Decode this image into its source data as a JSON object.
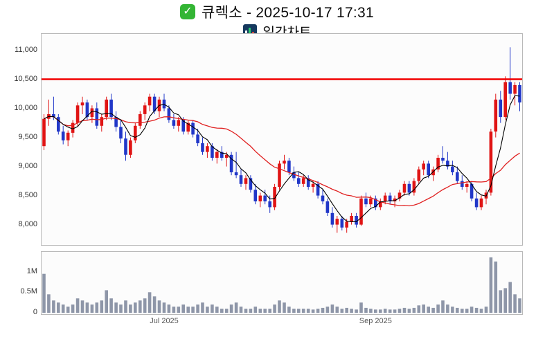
{
  "header": {
    "title": "큐렉소 - 2025-10-17 17:31",
    "subtitle": "일간차트"
  },
  "icons": {
    "check": "✓",
    "chart": "bar-chart-icon"
  },
  "colors": {
    "up": "#e01414",
    "down": "#2137c8",
    "ma_short": "#000000",
    "ma_long": "#e02020",
    "resistance": "#f20000",
    "volume_bar": "#8e96a8",
    "panel_border": "#b9b9b9",
    "panel_bg": "#fcfcfc"
  },
  "chart_data": {
    "type": "candlestick",
    "title": "큐렉소 일간차트",
    "price_range": [
      7650,
      11280
    ],
    "y_ticks": [
      11000,
      10500,
      10000,
      9500,
      9000,
      8500,
      8000
    ],
    "y_tick_labels": [
      "11,000",
      "10,500",
      "10,000",
      "9,500",
      "9,000",
      "8,500",
      "8,000"
    ],
    "resistance_line": 10500,
    "volume_max": 1450000,
    "volume_ticks": [
      {
        "value": 1000000,
        "label": "1M"
      },
      {
        "value": 500000,
        "label": "0.5M"
      },
      {
        "value": 0,
        "label": "0"
      }
    ],
    "x_ticks": [
      {
        "index": 25,
        "label": "Jul 2025"
      },
      {
        "index": 69,
        "label": "Sep 2025"
      }
    ],
    "ma_short_window": 5,
    "ma_long_window": 20,
    "candles": [
      [
        9350,
        9900,
        9280,
        9820
      ],
      [
        9820,
        10150,
        9700,
        9900
      ],
      [
        9900,
        10200,
        9800,
        9850
      ],
      [
        9850,
        9900,
        9550,
        9600
      ],
      [
        9600,
        9700,
        9380,
        9450
      ],
      [
        9450,
        9620,
        9350,
        9580
      ],
      [
        9580,
        9800,
        9500,
        9750
      ],
      [
        9750,
        10100,
        9700,
        10050
      ],
      [
        10050,
        10200,
        9900,
        10100
      ],
      [
        10100,
        10150,
        9800,
        9850
      ],
      [
        9850,
        10050,
        9750,
        10000
      ],
      [
        10000,
        10100,
        9650,
        9700
      ],
      [
        9700,
        9900,
        9600,
        9850
      ],
      [
        9850,
        10200,
        9800,
        10150
      ],
      [
        10150,
        10250,
        9800,
        9850
      ],
      [
        9850,
        9950,
        9600,
        9680
      ],
      [
        9680,
        9800,
        9400,
        9480
      ],
      [
        9480,
        9600,
        9100,
        9200
      ],
      [
        9200,
        9500,
        9150,
        9450
      ],
      [
        9450,
        9750,
        9400,
        9700
      ],
      [
        9700,
        9950,
        9650,
        9900
      ],
      [
        9900,
        10100,
        9800,
        10050
      ],
      [
        10050,
        10250,
        9950,
        10200
      ],
      [
        10200,
        10250,
        9900,
        9950
      ],
      [
        9950,
        10200,
        9850,
        10150
      ],
      [
        10150,
        10250,
        9950,
        10000
      ],
      [
        10000,
        10050,
        9750,
        9800
      ],
      [
        9800,
        9900,
        9650,
        9700
      ],
      [
        9700,
        9850,
        9600,
        9800
      ],
      [
        9800,
        9850,
        9550,
        9600
      ],
      [
        9600,
        9800,
        9550,
        9750
      ],
      [
        9750,
        9800,
        9500,
        9550
      ],
      [
        9550,
        9650,
        9350,
        9400
      ],
      [
        9400,
        9500,
        9200,
        9250
      ],
      [
        9250,
        9400,
        9150,
        9350
      ],
      [
        9350,
        9400,
        9100,
        9150
      ],
      [
        9150,
        9300,
        9050,
        9250
      ],
      [
        9250,
        9350,
        9100,
        9150
      ],
      [
        9150,
        9250,
        9000,
        9200
      ],
      [
        9200,
        9250,
        8850,
        8900
      ],
      [
        8900,
        9250,
        8800,
        8850
      ],
      [
        8850,
        8950,
        8650,
        8700
      ],
      [
        8700,
        8850,
        8600,
        8800
      ],
      [
        8800,
        8850,
        8550,
        8600
      ],
      [
        8600,
        8700,
        8350,
        8400
      ],
      [
        8400,
        8550,
        8300,
        8500
      ],
      [
        8500,
        8600,
        8350,
        8400
      ],
      [
        8400,
        8500,
        8200,
        8300
      ],
      [
        8300,
        8700,
        8250,
        8650
      ],
      [
        8650,
        9100,
        8600,
        9050
      ],
      [
        9050,
        9200,
        8950,
        9100
      ],
      [
        9100,
        9150,
        8850,
        8900
      ],
      [
        8900,
        9000,
        8750,
        8800
      ],
      [
        8800,
        8900,
        8650,
        8700
      ],
      [
        8700,
        8850,
        8650,
        8800
      ],
      [
        8800,
        8850,
        8600,
        8650
      ],
      [
        8650,
        8750,
        8550,
        8700
      ],
      [
        8700,
        8750,
        8450,
        8500
      ],
      [
        8500,
        8600,
        8350,
        8400
      ],
      [
        8400,
        8450,
        8150,
        8200
      ],
      [
        8200,
        8300,
        7950,
        8000
      ],
      [
        8000,
        8150,
        7860,
        8100
      ],
      [
        8100,
        8150,
        7900,
        7950
      ],
      [
        7950,
        8100,
        7860,
        8050
      ],
      [
        8050,
        8200,
        8000,
        8150
      ],
      [
        8150,
        8200,
        7950,
        8000
      ],
      [
        8000,
        8500,
        7980,
        8450
      ],
      [
        8450,
        8550,
        8300,
        8350
      ],
      [
        8350,
        8500,
        8300,
        8450
      ],
      [
        8450,
        8500,
        8250,
        8300
      ],
      [
        8300,
        8450,
        8250,
        8400
      ],
      [
        8400,
        8550,
        8350,
        8500
      ],
      [
        8500,
        8550,
        8350,
        8400
      ],
      [
        8400,
        8500,
        8300,
        8450
      ],
      [
        8450,
        8600,
        8400,
        8550
      ],
      [
        8550,
        8750,
        8500,
        8700
      ],
      [
        8700,
        8750,
        8500,
        8550
      ],
      [
        8550,
        8800,
        8500,
        8750
      ],
      [
        8750,
        9000,
        8700,
        8950
      ],
      [
        8950,
        9100,
        8850,
        9050
      ],
      [
        9050,
        9100,
        8800,
        8850
      ],
      [
        8850,
        9000,
        8750,
        8950
      ],
      [
        8950,
        9200,
        8900,
        9150
      ],
      [
        9150,
        9350,
        9050,
        9100
      ],
      [
        9100,
        9250,
        8950,
        9000
      ],
      [
        9000,
        9100,
        8850,
        8900
      ],
      [
        8900,
        9000,
        8700,
        8750
      ],
      [
        8750,
        8850,
        8600,
        8650
      ],
      [
        8650,
        8750,
        8550,
        8700
      ],
      [
        8700,
        8750,
        8400,
        8450
      ],
      [
        8450,
        8550,
        8250,
        8300
      ],
      [
        8300,
        8500,
        8250,
        8450
      ],
      [
        8450,
        8600,
        8350,
        8550
      ],
      [
        8550,
        9650,
        8500,
        9600
      ],
      [
        9600,
        10250,
        9500,
        10150
      ],
      [
        10150,
        10300,
        9750,
        9850
      ],
      [
        9850,
        10550,
        9800,
        10450
      ],
      [
        10450,
        11050,
        10150,
        10250
      ],
      [
        10250,
        10450,
        10050,
        10400
      ],
      [
        10400,
        10450,
        9950,
        10100
      ]
    ],
    "volumes": [
      950000,
      450000,
      300000,
      250000,
      200000,
      150000,
      200000,
      350000,
      300000,
      250000,
      200000,
      250000,
      300000,
      550000,
      350000,
      250000,
      200000,
      300000,
      200000,
      250000,
      300000,
      350000,
      500000,
      400000,
      300000,
      250000,
      200000,
      150000,
      150000,
      200000,
      150000,
      150000,
      200000,
      250000,
      150000,
      200000,
      150000,
      100000,
      100000,
      200000,
      250000,
      150000,
      100000,
      100000,
      150000,
      100000,
      100000,
      100000,
      200000,
      300000,
      250000,
      150000,
      100000,
      100000,
      100000,
      100000,
      80000,
      100000,
      120000,
      150000,
      200000,
      150000,
      100000,
      120000,
      100000,
      80000,
      250000,
      120000,
      100000,
      80000,
      80000,
      100000,
      80000,
      80000,
      100000,
      120000,
      100000,
      120000,
      180000,
      200000,
      150000,
      120000,
      200000,
      300000,
      200000,
      150000,
      120000,
      100000,
      100000,
      150000,
      120000,
      100000,
      150000,
      1350000,
      1250000,
      550000,
      600000,
      750000,
      450000,
      350000
    ]
  }
}
